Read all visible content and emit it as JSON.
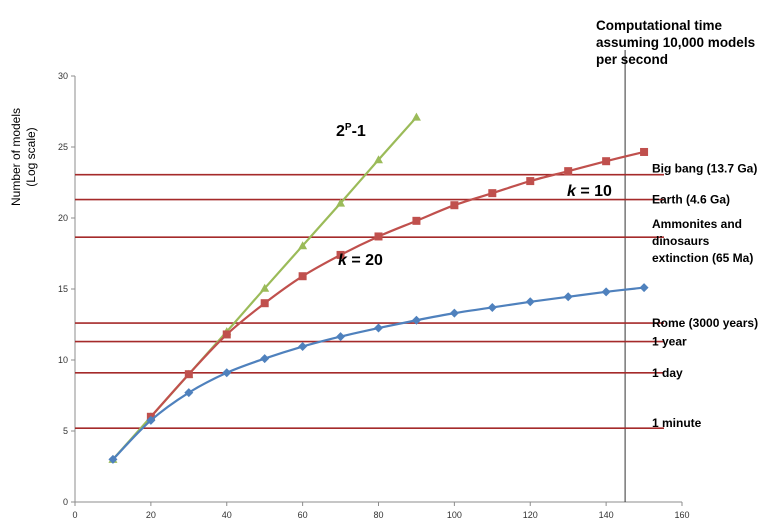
{
  "chart_data": {
    "type": "line",
    "title": "",
    "xlabel": "",
    "ylabel_lines": [
      "Number of models",
      "(Log scale)"
    ],
    "xlim": [
      0,
      160
    ],
    "ylim": [
      0,
      30
    ],
    "x_ticks": [
      "0",
      "20",
      "40",
      "60",
      "80",
      "100",
      "120",
      "140",
      "160"
    ],
    "y_ticks": [
      "0",
      "5",
      "10",
      "15",
      "20",
      "25",
      "30"
    ],
    "grid": false,
    "side_title_lines": [
      "Computational time",
      "assuming 10,000 models",
      "per second"
    ],
    "vertical_line_x": 145,
    "series": [
      {
        "id": "exhaustive",
        "label_main": "2",
        "label_sup": "P",
        "label_tail": "-1",
        "color": "#9bbb59",
        "marker": "triangle",
        "x": [
          10,
          20,
          30,
          40,
          50,
          60,
          70,
          80,
          90
        ],
        "values": [
          3.0,
          6.0,
          9.0,
          12.0,
          15.05,
          18.05,
          21.05,
          24.1,
          27.1
        ]
      },
      {
        "id": "k20",
        "label_main": "k",
        "label_tail": " = 20",
        "color": "#c0504d",
        "marker": "square",
        "x": [
          20,
          30,
          40,
          50,
          60,
          70,
          80,
          90,
          100,
          110,
          120,
          130,
          140,
          150
        ],
        "values": [
          6.0,
          9.0,
          11.8,
          14.0,
          15.9,
          17.4,
          18.7,
          19.8,
          20.9,
          21.75,
          22.6,
          23.3,
          24.0,
          24.65
        ]
      },
      {
        "id": "k10",
        "label_main": "k",
        "label_tail": " = 10",
        "color": "#4f81bd",
        "marker": "diamond",
        "x": [
          10,
          20,
          30,
          40,
          50,
          60,
          70,
          80,
          90,
          100,
          110,
          120,
          130,
          140,
          150
        ],
        "values": [
          3.0,
          5.75,
          7.7,
          9.1,
          10.1,
          10.95,
          11.65,
          12.25,
          12.8,
          13.3,
          13.7,
          14.1,
          14.45,
          14.8,
          15.1
        ]
      }
    ],
    "reference_lines": [
      {
        "value": 23.05,
        "label": "Big bang (13.7 Ga)"
      },
      {
        "value": 21.3,
        "label": "Earth  (4.6 Ga)"
      },
      {
        "value": 18.65,
        "label_lines": [
          "Ammonites  and",
          "dinosaurs",
          "extinction (65 Ma)"
        ]
      },
      {
        "value": 12.6,
        "label": "Rome (3000 years)"
      },
      {
        "value": 11.3,
        "label": "1 year"
      },
      {
        "value": 9.1,
        "label": "1 day"
      },
      {
        "value": 5.2,
        "label": "1 minute"
      }
    ],
    "reference_line_color": "#a52a2a"
  }
}
